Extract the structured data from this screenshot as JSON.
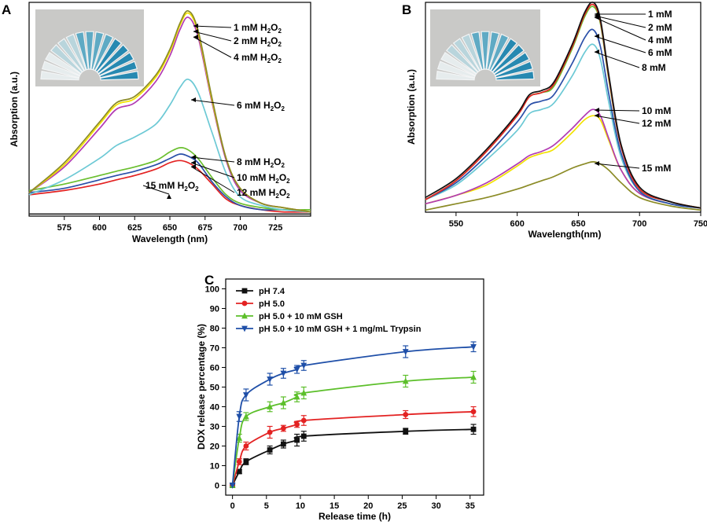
{
  "chart_data": [
    {
      "panel": "A",
      "type": "line",
      "xlabel": "Wavelength (nm)",
      "ylabel": "Absorption (a.u.)",
      "xlim": [
        550,
        750
      ],
      "ylim": [
        0,
        1
      ],
      "xticks": [
        575,
        600,
        625,
        650,
        675,
        700,
        725
      ],
      "inset": "photo-of-vials",
      "x": [
        550,
        575,
        600,
        612,
        625,
        640,
        650,
        657,
        663,
        670,
        680,
        690,
        700,
        715,
        730,
        750
      ],
      "series": [
        {
          "name": "1 mM H2O2",
          "color": "#8b8b26",
          "values": [
            0.11,
            0.25,
            0.44,
            0.53,
            0.56,
            0.66,
            0.78,
            0.9,
            0.96,
            0.87,
            0.55,
            0.27,
            0.13,
            0.06,
            0.04,
            0.02
          ]
        },
        {
          "name": "2 mM H2O2",
          "color": "#f2e200",
          "values": [
            0.11,
            0.24,
            0.43,
            0.52,
            0.55,
            0.65,
            0.77,
            0.89,
            0.95,
            0.86,
            0.54,
            0.27,
            0.13,
            0.06,
            0.04,
            0.02
          ]
        },
        {
          "name": "4 mM H2O2",
          "color": "#b23bb3",
          "values": [
            0.11,
            0.23,
            0.41,
            0.5,
            0.53,
            0.63,
            0.75,
            0.87,
            0.93,
            0.84,
            0.53,
            0.26,
            0.12,
            0.06,
            0.04,
            0.02
          ]
        },
        {
          "name": "6 mM H2O2",
          "color": "#6cc9d5",
          "values": [
            0.1,
            0.17,
            0.27,
            0.33,
            0.37,
            0.43,
            0.52,
            0.6,
            0.64,
            0.58,
            0.39,
            0.2,
            0.09,
            0.05,
            0.03,
            0.02
          ]
        },
        {
          "name": "8 mM H2O2",
          "color": "#6abf2f",
          "values": [
            0.12,
            0.15,
            0.19,
            0.21,
            0.23,
            0.26,
            0.3,
            0.32,
            0.31,
            0.27,
            0.18,
            0.1,
            0.06,
            0.04,
            0.03,
            0.03
          ]
        },
        {
          "name": "10 mM H2O2",
          "color": "#2a4fa8",
          "values": [
            0.11,
            0.13,
            0.17,
            0.19,
            0.21,
            0.24,
            0.27,
            0.29,
            0.28,
            0.25,
            0.16,
            0.09,
            0.05,
            0.03,
            0.03,
            0.02
          ]
        },
        {
          "name": "12 mM H2O2",
          "color": "#e32222",
          "values": [
            0.1,
            0.12,
            0.15,
            0.17,
            0.19,
            0.22,
            0.25,
            0.26,
            0.25,
            0.22,
            0.15,
            0.08,
            0.05,
            0.03,
            0.02,
            0.02
          ]
        },
        {
          "name": "15 mM H2O2",
          "color": "#222222",
          "values": [
            0.01,
            0.01,
            0.01,
            0.01,
            0.01,
            0.01,
            0.01,
            0.01,
            0.01,
            0.01,
            0.01,
            0.01,
            0.01,
            0.01,
            0.01,
            0.01
          ]
        }
      ],
      "annotations": [
        {
          "base": "1 mM H",
          "sub": "2",
          "mid": "O",
          "sub2": "2"
        },
        {
          "base": "2 mM H",
          "sub": "2",
          "mid": "O",
          "sub2": "2"
        },
        {
          "base": "4 mM H",
          "sub": "2",
          "mid": "O",
          "sub2": "2"
        },
        {
          "base": "6 mM H",
          "sub": "2",
          "mid": "O",
          "sub2": "2"
        },
        {
          "base": "8 mM H",
          "sub": "2",
          "mid": "O",
          "sub2": "2"
        },
        {
          "base": "10 mM H",
          "sub": "2",
          "mid": "O",
          "sub2": "2"
        },
        {
          "base": "12 mM H",
          "sub": "2",
          "mid": "O",
          "sub2": "2"
        },
        {
          "base": "15 mM H",
          "sub": "2",
          "mid": "O",
          "sub2": "2"
        }
      ]
    },
    {
      "panel": "B",
      "type": "line",
      "xlabel": "Wavelength(nm)",
      "ylabel": "Absorption (a.u.)",
      "xlim": [
        525,
        750
      ],
      "ylim": [
        0,
        1
      ],
      "xticks": [
        550,
        600,
        650,
        700,
        750
      ],
      "inset": "photo-of-vials",
      "x": [
        525,
        550,
        575,
        600,
        610,
        620,
        630,
        645,
        655,
        662,
        668,
        675,
        685,
        700,
        725,
        750
      ],
      "series": [
        {
          "name": "1 mM",
          "color": "#111111",
          "values": [
            0.07,
            0.16,
            0.3,
            0.47,
            0.56,
            0.58,
            0.62,
            0.8,
            0.95,
            1.0,
            0.92,
            0.65,
            0.32,
            0.12,
            0.05,
            0.02
          ]
        },
        {
          "name": "2 mM",
          "color": "#e32222",
          "values": [
            0.06,
            0.15,
            0.29,
            0.46,
            0.55,
            0.57,
            0.61,
            0.79,
            0.94,
            0.99,
            0.91,
            0.64,
            0.31,
            0.11,
            0.05,
            0.02
          ]
        },
        {
          "name": "4 mM",
          "color": "#6abf2f",
          "values": [
            0.06,
            0.15,
            0.29,
            0.46,
            0.55,
            0.57,
            0.6,
            0.78,
            0.93,
            0.98,
            0.9,
            0.63,
            0.31,
            0.11,
            0.05,
            0.02
          ]
        },
        {
          "name": "6 mM",
          "color": "#2a4fa8",
          "values": [
            0.06,
            0.14,
            0.27,
            0.43,
            0.51,
            0.53,
            0.56,
            0.71,
            0.83,
            0.87,
            0.79,
            0.56,
            0.28,
            0.1,
            0.04,
            0.02
          ]
        },
        {
          "name": "8 mM",
          "color": "#6cc9d5",
          "values": [
            0.06,
            0.13,
            0.25,
            0.39,
            0.47,
            0.49,
            0.52,
            0.65,
            0.76,
            0.8,
            0.73,
            0.52,
            0.26,
            0.1,
            0.04,
            0.02
          ]
        },
        {
          "name": "10 mM",
          "color": "#b23bb3",
          "values": [
            0.04,
            0.08,
            0.14,
            0.23,
            0.27,
            0.29,
            0.32,
            0.4,
            0.46,
            0.49,
            0.46,
            0.35,
            0.2,
            0.09,
            0.04,
            0.02
          ]
        },
        {
          "name": "12 mM",
          "color": "#f2e200",
          "values": [
            0.04,
            0.08,
            0.13,
            0.22,
            0.26,
            0.28,
            0.3,
            0.38,
            0.44,
            0.46,
            0.44,
            0.34,
            0.2,
            0.09,
            0.04,
            0.02
          ]
        },
        {
          "name": "15 mM",
          "color": "#8b8b26",
          "values": [
            0.01,
            0.04,
            0.07,
            0.11,
            0.13,
            0.15,
            0.17,
            0.21,
            0.23,
            0.24,
            0.23,
            0.2,
            0.14,
            0.07,
            0.03,
            0.01
          ]
        }
      ],
      "annotations": [
        "1 mM",
        "2 mM",
        "4 mM",
        "6 mM",
        "8 mM",
        "10 mM",
        "12 mM",
        "15 mM"
      ]
    },
    {
      "panel": "C",
      "type": "scatter",
      "xlabel": "Release time (h)",
      "ylabel": "DOX release percentage (%)",
      "xlim": [
        -1,
        37
      ],
      "ylim": [
        -5,
        105
      ],
      "xticks": [
        0,
        5,
        10,
        15,
        20,
        25,
        30,
        35
      ],
      "yticks": [
        0,
        10,
        20,
        30,
        40,
        50,
        60,
        70,
        80,
        90,
        100
      ],
      "x": [
        0,
        1,
        2,
        5.5,
        7.5,
        9.5,
        10.5,
        25.5,
        35.5
      ],
      "series": [
        {
          "name": "pH 7.4",
          "color": "#111111",
          "marker": "square",
          "values": [
            0,
            7,
            12,
            18,
            21,
            23,
            25,
            27.5,
            28.5
          ],
          "errors": [
            0,
            1,
            1.5,
            2,
            2,
            3,
            2.5,
            1.5,
            2.5
          ]
        },
        {
          "name": "pH 5.0",
          "color": "#e32222",
          "marker": "circle",
          "values": [
            0,
            12,
            20,
            27,
            29,
            31,
            33,
            36,
            37.5
          ],
          "errors": [
            0,
            1.5,
            2,
            3,
            1.5,
            1.5,
            2.5,
            2,
            2.5
          ]
        },
        {
          "name": "pH 5.0 + 10 mM GSH",
          "color": "#5cbf2a",
          "marker": "triangle-up",
          "values": [
            0,
            24,
            35,
            40,
            42,
            45,
            47,
            53,
            55
          ],
          "errors": [
            0,
            2,
            2,
            2.5,
            3,
            2.5,
            3,
            3,
            3
          ]
        },
        {
          "name": "pH 5.0 + 10 mM GSH + 1 mg/mL Trypsin",
          "color": "#1f4fa8",
          "marker": "triangle-down",
          "values": [
            0,
            35,
            46,
            54,
            57,
            59,
            61,
            68,
            70.5
          ],
          "errors": [
            0,
            2.5,
            3,
            3,
            2.5,
            2,
            2.5,
            3,
            2.5
          ]
        }
      ]
    }
  ],
  "panels": [
    "A",
    "B",
    "C"
  ]
}
